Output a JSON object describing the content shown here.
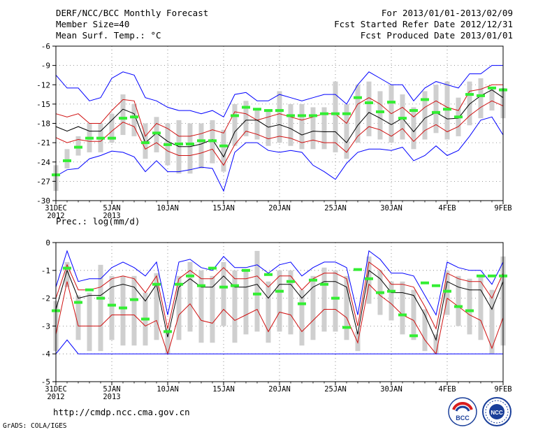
{
  "header": {
    "left": [
      "DERF/NCC/BCC Monthly Forecast",
      "Member Size=40",
      "Mean Surf. Temp.: °C"
    ],
    "right": [
      "For 2013/01/01-2013/02/09",
      "Fcst Started Refer Date 2012/12/31",
      "Fcst Produced Date 2013/01/01"
    ]
  },
  "footer": {
    "url": "http://cmdp.ncc.cma.gov.cn",
    "grads": "GrADS: COLA/IGES",
    "logo_left_text": "BCC",
    "logo_right_text": "NCC"
  },
  "colors": {
    "blue": "#0000ff",
    "red": "#d01010",
    "black": "#000000",
    "green": "#33ee33",
    "gray": "#cfcfcf"
  },
  "chart_data": [
    {
      "type": "line",
      "title": "Mean Surf. Temp.: °C",
      "ylim": [
        -30,
        -6
      ],
      "yticks": [
        -30,
        -27,
        -24,
        -21,
        -18,
        -15,
        -12,
        -9,
        -6
      ],
      "ytick_labels": [
        "-30",
        "-27",
        "-24",
        "-21",
        "-18",
        "-15",
        "-12",
        "-9",
        "-6"
      ],
      "xlim": [
        0,
        40
      ],
      "xticks": [
        0,
        5,
        10,
        15,
        20,
        25,
        30,
        35,
        40
      ],
      "xtick_labels": [
        "31DEC",
        "5JAN",
        "10JAN",
        "15JAN",
        "20JAN",
        "25JAN",
        "30JAN",
        "4FEB",
        "9FEB"
      ],
      "xtick_sublabels": [
        "2012",
        "2013",
        "",
        "",
        "",
        "",
        "",
        "",
        ""
      ],
      "series": [
        {
          "name": "max",
          "color": "blue",
          "values": [
            -10.5,
            -12.5,
            -12.5,
            -14.5,
            -14,
            -11,
            -10,
            -10.5,
            -14,
            -14.5,
            -15.5,
            -16,
            -16,
            -16.5,
            -16,
            -17,
            -13.5,
            -13.2,
            -14.5,
            -14.5,
            -13.5,
            -14,
            -14.5,
            -14,
            -13.5,
            -13.5,
            -15,
            -12,
            -10,
            -11,
            -12,
            -12,
            -14.5,
            -12.5,
            -11.5,
            -12,
            -12.5,
            -10.3,
            -10.3,
            -9,
            -9
          ]
        },
        {
          "name": "upper",
          "color": "red",
          "values": [
            -16.5,
            -17,
            -16.5,
            -18,
            -18,
            -16,
            -14.3,
            -14.5,
            -20,
            -18,
            -18.8,
            -20,
            -20,
            -19.6,
            -19,
            -19.5,
            -16.2,
            -16.5,
            -17.5,
            -17,
            -16.5,
            -17,
            -17.5,
            -17,
            -16.5,
            -16.5,
            -18,
            -15,
            -14,
            -15,
            -16.5,
            -15.5,
            -17,
            -15.5,
            -14.5,
            -15.5,
            -16,
            -13,
            -12.7,
            -12,
            -12
          ]
        },
        {
          "name": "mean",
          "color": "black",
          "values": [
            -18.5,
            -19.2,
            -18.5,
            -19.2,
            -19.2,
            -17.5,
            -15.8,
            -16.5,
            -21,
            -19.5,
            -20.8,
            -21.6,
            -21.6,
            -21.2,
            -20.5,
            -23.2,
            -19.3,
            -17.5,
            -17.5,
            -18.6,
            -18.2,
            -18.8,
            -19.8,
            -19.2,
            -19.3,
            -19.3,
            -21,
            -18.3,
            -16.3,
            -17.2,
            -18.2,
            -17.2,
            -19.3,
            -17.2,
            -16.3,
            -17.3,
            -17.2,
            -15,
            -13.7,
            -12.8,
            -14
          ]
        },
        {
          "name": "lower",
          "color": "red",
          "values": [
            -20.2,
            -21,
            -20.5,
            -20.8,
            -20.8,
            -19.2,
            -17.8,
            -18.5,
            -22,
            -21,
            -22.3,
            -23,
            -23,
            -22.6,
            -22,
            -24.5,
            -21.3,
            -19.2,
            -19.7,
            -20.4,
            -20,
            -20.3,
            -21,
            -20.6,
            -21,
            -21,
            -22.5,
            -20,
            -18.5,
            -19,
            -20,
            -18.8,
            -20.8,
            -19.1,
            -18.2,
            -19.3,
            -18.5,
            -16.8,
            -15.5,
            -14.5,
            -15.3
          ]
        },
        {
          "name": "min",
          "color": "blue",
          "values": [
            -26.2,
            -25.2,
            -25,
            -23.5,
            -23,
            -22.3,
            -22.5,
            -23.2,
            -25.5,
            -23.8,
            -25.5,
            -25.5,
            -25.2,
            -24.8,
            -25,
            -28.5,
            -22.5,
            -21,
            -21,
            -22.2,
            -22.5,
            -22.2,
            -22.5,
            -24.5,
            -25.5,
            -26.7,
            -24.2,
            -22.5,
            -22,
            -22,
            -22.2,
            -21.7,
            -23.8,
            -23,
            -21.5,
            -23,
            -22.2,
            -20,
            -17.5,
            -17,
            -19.8
          ]
        }
      ],
      "boxes": {
        "low": [
          -28.5,
          -25,
          -23,
          -22.5,
          -22.5,
          -21,
          -19.8,
          -20,
          -23.5,
          -22.5,
          -24.5,
          -25.8,
          -25.8,
          -25,
          -24.2,
          -25.5,
          -21.5,
          -20,
          -20.5,
          -21.5,
          -21,
          -21.5,
          -22,
          -22,
          -22,
          -22.5,
          -23.5,
          -21,
          -20,
          -20.5,
          -21,
          -20.5,
          -22,
          -20.5,
          -19.5,
          -20.5,
          -20,
          -18.3,
          -17.2,
          -16,
          -17.2
        ],
        "high": [
          -24.5,
          -22,
          -20,
          -18,
          -18,
          -16.5,
          -13.5,
          -15,
          -18,
          -17,
          -18,
          -17.5,
          -18,
          -18,
          -17.5,
          -19,
          -15,
          -14.5,
          -16,
          -16,
          -13,
          -15,
          -15,
          -15.5,
          -15.5,
          -11.5,
          -15,
          -12,
          -11.5,
          -13,
          -12,
          -13.5,
          -15.5,
          -13,
          -12,
          -11.5,
          -14,
          -11.5,
          -11,
          -12.5,
          -12.5
        ]
      },
      "observed": [
        -26,
        -23.8,
        -21.7,
        -20.3,
        -20.3,
        -20.3,
        -17.2,
        -17,
        -21,
        -19.5,
        -21.3,
        -21.2,
        -21.2,
        -20.7,
        -20.7,
        -21.5,
        -16.8,
        -15.5,
        -15.8,
        -16,
        -16,
        -16.8,
        -16.8,
        -16.8,
        -16.5,
        -16.5,
        -16.5,
        -14,
        -14.8,
        -16.2,
        -14.7,
        -17.2,
        -16,
        -14.3,
        -16.3,
        -15.8,
        -17,
        -13.5,
        -13.7,
        -12.5,
        -12.8
      ]
    },
    {
      "type": "line",
      "title": "Prec.: log(mm/d)",
      "ylim": [
        -5,
        0
      ],
      "yticks": [
        -5,
        -4,
        -3,
        -2,
        -1,
        0
      ],
      "ytick_labels": [
        "-5",
        "-4",
        "-3",
        "-2",
        "-1",
        "0"
      ],
      "xlim": [
        0,
        40
      ],
      "xticks": [
        0,
        5,
        10,
        15,
        20,
        25,
        30,
        35,
        40
      ],
      "xtick_labels": [
        "31DEC",
        "5JAN",
        "10JAN",
        "15JAN",
        "20JAN",
        "25JAN",
        "30JAN",
        "4FEB",
        "9FEB"
      ],
      "xtick_sublabels": [
        "2012",
        "2013",
        "",
        "",
        "",
        "",
        "",
        "",
        ""
      ],
      "series": [
        {
          "name": "max",
          "color": "blue",
          "values": [
            -1.6,
            -0.3,
            -1.4,
            -1.3,
            -1.3,
            -0.9,
            -0.7,
            -0.9,
            -1.2,
            -0.7,
            -2.6,
            -0.7,
            -0.6,
            -0.9,
            -1.0,
            -0.5,
            -0.9,
            -0.9,
            -0.8,
            -1.1,
            -0.8,
            -0.7,
            -1.2,
            -0.9,
            -0.7,
            -0.7,
            -0.9,
            -2.6,
            -0.3,
            -0.6,
            -1.1,
            -1.1,
            -1.2,
            -1.9,
            -2.6,
            -0.7,
            -0.9,
            -1.0,
            -1.0,
            -1.5,
            -0.7
          ]
        },
        {
          "name": "upper",
          "color": "red",
          "values": [
            -2.0,
            -0.8,
            -1.7,
            -1.7,
            -1.6,
            -1.3,
            -1.2,
            -1.3,
            -1.8,
            -1.2,
            -3.1,
            -1.3,
            -1.0,
            -1.3,
            -1.3,
            -0.9,
            -1.3,
            -1.3,
            -1.2,
            -1.6,
            -1.2,
            -1.2,
            -1.7,
            -1.3,
            -1.1,
            -1.1,
            -1.3,
            -3.0,
            -0.7,
            -1.0,
            -1.5,
            -1.5,
            -1.6,
            -2.3,
            -3.1,
            -1.1,
            -1.3,
            -1.4,
            -1.4,
            -2.0,
            -1.1
          ]
        },
        {
          "name": "mean",
          "color": "black",
          "values": [
            -2.4,
            -1.0,
            -2.0,
            -1.9,
            -1.9,
            -1.6,
            -1.5,
            -1.6,
            -2.1,
            -1.5,
            -3.4,
            -1.6,
            -1.3,
            -1.6,
            -1.6,
            -1.2,
            -1.6,
            -1.6,
            -1.5,
            -2.0,
            -1.5,
            -1.5,
            -2.0,
            -1.6,
            -1.4,
            -1.4,
            -1.6,
            -3.3,
            -1.0,
            -1.3,
            -1.8,
            -1.8,
            -1.9,
            -2.6,
            -3.5,
            -1.4,
            -1.6,
            -1.7,
            -1.7,
            -2.4,
            -1.4
          ]
        },
        {
          "name": "lower",
          "color": "red",
          "values": [
            -3.3,
            -1.4,
            -3.0,
            -3.0,
            -3.0,
            -2.6,
            -2.6,
            -2.6,
            -3.0,
            -2.8,
            -4.0,
            -2.6,
            -2.2,
            -2.8,
            -2.9,
            -2.4,
            -2.8,
            -2.6,
            -2.4,
            -3.2,
            -2.5,
            -2.6,
            -3.2,
            -2.8,
            -2.4,
            -2.4,
            -2.7,
            -3.6,
            -1.5,
            -1.9,
            -2.2,
            -2.6,
            -2.8,
            -3.5,
            -4.0,
            -2.0,
            -2.3,
            -2.6,
            -2.8,
            -3.8,
            -2.7
          ]
        },
        {
          "name": "min",
          "color": "blue",
          "values": [
            -4.0,
            -3.5,
            -4.0,
            -4.0,
            -4.0,
            -4.0,
            -4.0,
            -4.0,
            -4.0,
            -4.0,
            -4.0,
            -4.0,
            -4.0,
            -4.0,
            -4.0,
            -4.0,
            -4.0,
            -4.0,
            -4.0,
            -4.0,
            -4.0,
            -4.0,
            -4.0,
            -4.0,
            -4.0,
            -4.0,
            -4.0,
            -4.0,
            -4.0,
            -4.0,
            -4.0,
            -4.0,
            -4.0,
            -4.0,
            -4.0,
            -4.0,
            -4.0,
            -4.0,
            -4.0,
            -4.0,
            -4.0
          ]
        }
      ],
      "boxes": {
        "low": [
          -3.9,
          -1.6,
          -3.5,
          -3.9,
          -3.9,
          -3.5,
          -3.7,
          -3.7,
          -3.7,
          -3.5,
          -4.0,
          -3.5,
          -3.2,
          -3.6,
          -3.6,
          -3.0,
          -3.6,
          -3.3,
          -3.2,
          -3.6,
          -3.2,
          -3.3,
          -3.7,
          -3.5,
          -3.2,
          -3.2,
          -3.5,
          -3.9,
          -2.2,
          -2.6,
          -2.8,
          -3.3,
          -3.5,
          -3.9,
          -4.0,
          -2.6,
          -3.0,
          -3.3,
          -3.5,
          -4.0,
          -3.7
        ],
        "high": [
          -2.1,
          -0.7,
          -1.9,
          -1.8,
          -0.8,
          -1.2,
          -1.2,
          -1.2,
          -1.8,
          -1.1,
          -3.1,
          -1.2,
          -0.7,
          -1.0,
          -1.2,
          -0.7,
          -1.0,
          -1.0,
          -0.3,
          -1.4,
          -1.0,
          -1.0,
          -1.7,
          -1.2,
          -0.9,
          -1.0,
          -1.2,
          -3.2,
          -0.5,
          -1.0,
          -1.4,
          -1.4,
          -1.7,
          -2.4,
          -3.3,
          -1.0,
          -1.2,
          -1.3,
          -1.2,
          -1.7,
          -0.5
        ]
      },
      "observed": [
        -2.45,
        -0.92,
        -2.15,
        -1.7,
        -2.0,
        -2.25,
        -2.35,
        -2.05,
        -2.75,
        -1.5,
        -3.2,
        -1.5,
        -1.2,
        -1.55,
        -0.92,
        -1.6,
        -1.55,
        -1.0,
        -1.85,
        -1.15,
        -1.75,
        -1.4,
        -2.2,
        -1.35,
        -1.5,
        -2.0,
        -3.05,
        -0.97,
        -1.3,
        -1.8,
        -1.75,
        -2.6,
        -3.35,
        -1.45,
        -1.55,
        -1.75,
        -2.3,
        -2.45,
        -1.2,
        -1.2,
        -1.2
      ]
    }
  ]
}
